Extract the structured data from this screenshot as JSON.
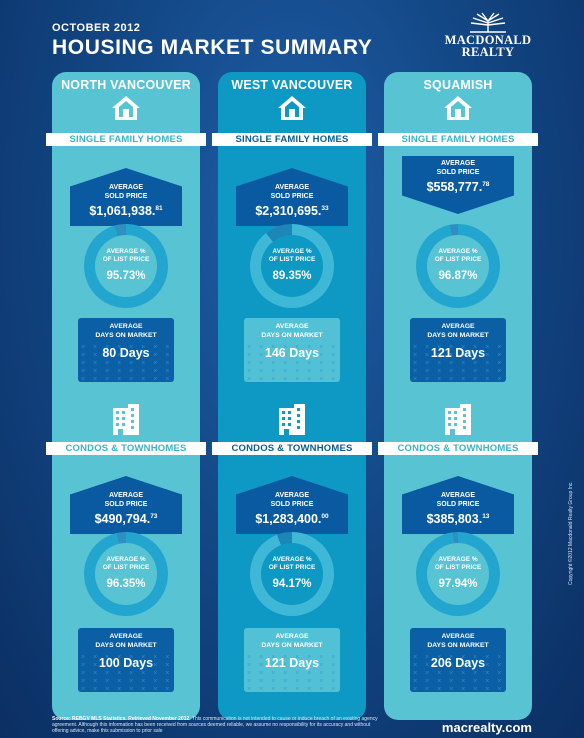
{
  "header": {
    "date": "OCTOBER 2012",
    "title": "HOUSING MARKET SUMMARY",
    "logo_line1": "MACDONALD",
    "logo_line2": "REALTY"
  },
  "labels": {
    "single_family": "SINGLE FAMILY HOMES",
    "condos": "CONDOS & TOWNHOMES",
    "avg_sold_price_1": "AVERAGE",
    "avg_sold_price_2": "SOLD PRICE",
    "pct_list_1": "AVERAGE %",
    "pct_list_2": "OF LIST PRICE",
    "days_1": "AVERAGE",
    "days_2": "DAYS ON MARKET"
  },
  "columns": [
    {
      "name": "NORTH VANCOUVER",
      "single_family": {
        "price_main": "$1,061,938.",
        "price_cents": "81",
        "pct_list": "95.73%",
        "days": "80 Days"
      },
      "condos": {
        "price_main": "$490,794.",
        "price_cents": "73",
        "pct_list": "96.35%",
        "days": "100 Days"
      }
    },
    {
      "name": "WEST VANCOUVER",
      "single_family": {
        "price_main": "$2,310,695.",
        "price_cents": "33",
        "pct_list": "89.35%",
        "days": "146 Days"
      },
      "condos": {
        "price_main": "$1,283,400.",
        "price_cents": "00",
        "pct_list": "94.17%",
        "days": "121 Days"
      }
    },
    {
      "name": "SQUAMISH",
      "single_family": {
        "price_main": "$558,777.",
        "price_cents": "78",
        "pct_list": "96.87%",
        "days": "121 Days"
      },
      "condos": {
        "price_main": "$385,803.",
        "price_cents": "13",
        "pct_list": "97.94%",
        "days": "206 Days"
      }
    }
  ],
  "footer": {
    "source_label": "Source: REBGV MLS Statistics. Retrieved November 2012.",
    "disclaimer": "This communication is not intended to cause or induce breach of an existing agency agreement. Although this information has been received from sources deemed reliable, we assume no responsibility for its accuracy and without offering advice, make this submission to prior sale",
    "website": "macrealty.com",
    "copyright": "Copyright ©2012 Macdonald Realty Group Inc."
  },
  "colors": {
    "background": "#134886",
    "light_column": "#58c3d3",
    "dark_column": "#0d99c4",
    "price_block": "#0a5aa2",
    "donut_ring": "#22a6cf"
  }
}
